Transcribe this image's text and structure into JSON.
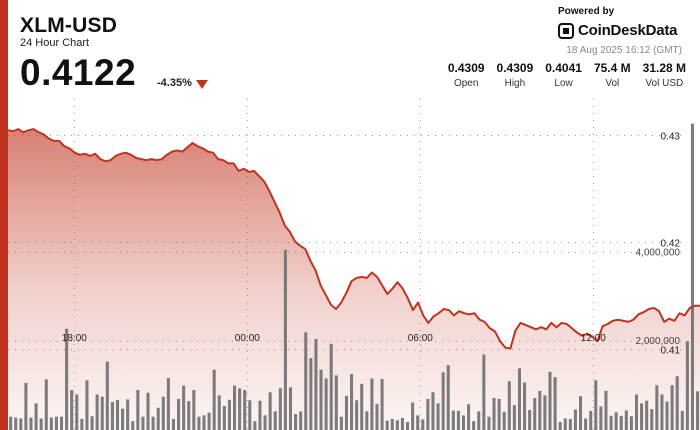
{
  "header": {
    "title": "XLM-USD",
    "subtitle": "24 Hour Chart",
    "price": "0.4122",
    "change": "-4.35%",
    "powered_by": "Powered by",
    "brand": "CoinDeskData",
    "timestamp": "18 Aug 2025 16:12 (GMT)"
  },
  "stats": [
    {
      "value": "0.4309",
      "label": "Open"
    },
    {
      "value": "0.4309",
      "label": "High"
    },
    {
      "value": "0.4041",
      "label": "Low"
    },
    {
      "value": "75.4 M",
      "label": "Vol"
    },
    {
      "value": "31.28 M",
      "label": "Vol USD"
    }
  ],
  "colors": {
    "accent": "#c1331f",
    "line": "#c1331f",
    "fill": "#c1331f",
    "volume": "#6e6e6e"
  },
  "chart_data": {
    "type": "area",
    "price_axis": {
      "ticks": [
        0.43,
        0.42,
        0.41
      ],
      "tick_labels": [
        "0.43",
        "0.42",
        "0.41"
      ],
      "ylim": [
        0.4025,
        0.4336
      ]
    },
    "volume_axis": {
      "ticks": [
        4000000,
        2000000
      ],
      "tick_labels": [
        "4,000,000",
        "2,000,000"
      ],
      "ylim": [
        0,
        7500000
      ]
    },
    "x_tick_labels": [
      "18:00",
      "00:00",
      "06:00",
      "12:00"
    ],
    "x_tick_hours": [
      2.3,
      8.3,
      14.3,
      20.3
    ],
    "x_range_hours": [
      0,
      24
    ],
    "price": [
      0.4305,
      0.4304,
      0.4306,
      0.4303,
      0.4305,
      0.4306,
      0.4303,
      0.4301,
      0.4297,
      0.4295,
      0.4295,
      0.429,
      0.4288,
      0.4284,
      0.4282,
      0.4283,
      0.4281,
      0.4283,
      0.4278,
      0.4276,
      0.4277,
      0.4281,
      0.4283,
      0.4284,
      0.4282,
      0.4279,
      0.4278,
      0.4277,
      0.4278,
      0.4277,
      0.4278,
      0.4282,
      0.4285,
      0.4286,
      0.4285,
      0.4289,
      0.4293,
      0.429,
      0.4288,
      0.4285,
      0.4284,
      0.4278,
      0.4277,
      0.4274,
      0.4274,
      0.4267,
      0.4269,
      0.4266,
      0.4267,
      0.4262,
      0.4257,
      0.4248,
      0.4238,
      0.4228,
      0.4216,
      0.421,
      0.4201,
      0.4197,
      0.4194,
      0.4183,
      0.4174,
      0.416,
      0.4151,
      0.4142,
      0.4138,
      0.4144,
      0.4153,
      0.4164,
      0.4167,
      0.4168,
      0.4167,
      0.4172,
      0.4168,
      0.416,
      0.4152,
      0.4157,
      0.4163,
      0.4157,
      0.4148,
      0.4137,
      0.4144,
      0.4132,
      0.4125,
      0.4131,
      0.4134,
      0.4138,
      0.4137,
      0.4132,
      0.4136,
      0.4134,
      0.4133,
      0.4134,
      0.4128,
      0.4126,
      0.412,
      0.4117,
      0.4108,
      0.4102,
      0.4101,
      0.4118,
      0.4125,
      0.4123,
      0.4121,
      0.4119,
      0.4121,
      0.4119,
      0.4125,
      0.4121,
      0.4125,
      0.4124,
      0.412,
      0.4116,
      0.4113,
      0.4115,
      0.4112,
      0.4108,
      0.4122,
      0.4124,
      0.4127,
      0.4128,
      0.4127,
      0.4126,
      0.4128,
      0.4133,
      0.4135,
      0.4138,
      0.4139,
      0.4136,
      0.4126,
      0.4129,
      0.4127,
      0.4134,
      0.4132,
      0.4139,
      0.4141,
      0.4141
    ],
    "volume": [
      300000,
      280000,
      260000,
      1060000,
      280000,
      600000,
      260000,
      1140000,
      280000,
      300000,
      300000,
      2280000,
      900000,
      800000,
      250000,
      1120000,
      310000,
      800000,
      750000,
      1540000,
      630000,
      680000,
      480000,
      690000,
      200000,
      900000,
      300000,
      840000,
      300000,
      500000,
      750000,
      1170000,
      250000,
      700000,
      1000000,
      650000,
      900000,
      300000,
      330000,
      390000,
      1360000,
      780000,
      540000,
      680000,
      1000000,
      940000,
      900000,
      670000,
      200000,
      660000,
      330000,
      850000,
      420000,
      940000,
      4060000,
      960000,
      360000,
      420000,
      2200000,
      1620000,
      2050000,
      1360000,
      1160000,
      1940000,
      1230000,
      300000,
      770000,
      1260000,
      670000,
      1040000,
      420000,
      1160000,
      590000,
      1150000,
      210000,
      250000,
      220000,
      270000,
      180000,
      620000,
      330000,
      240000,
      700000,
      850000,
      600000,
      1300000,
      1460000,
      440000,
      430000,
      330000,
      580000,
      200000,
      420000,
      1700000,
      300000,
      720000,
      700000,
      410000,
      1100000,
      560000,
      1390000,
      1070000,
      450000,
      720000,
      880000,
      780000,
      1310000,
      1190000,
      180000,
      260000,
      250000,
      460000,
      760000,
      260000,
      430000,
      1120000,
      530000,
      880000,
      320000,
      400000,
      320000,
      440000,
      310000,
      800000,
      600000,
      660000,
      470000,
      1010000,
      800000,
      640000,
      1010000,
      1210000,
      430000,
      2000000,
      6900000,
      870000
    ]
  }
}
